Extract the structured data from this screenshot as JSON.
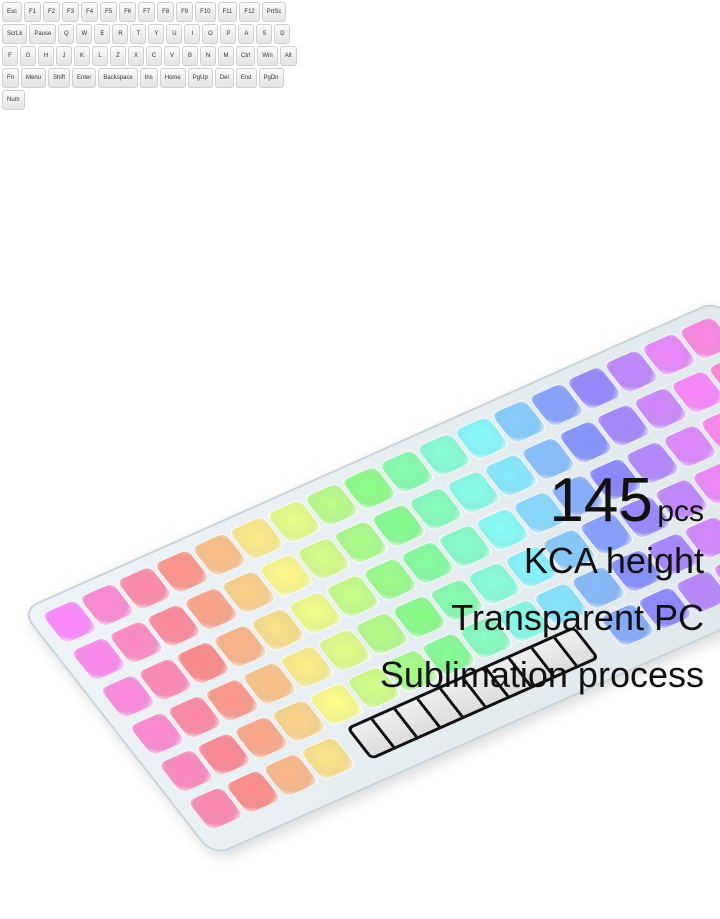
{
  "caption": {
    "count": "145",
    "unit": "pcs",
    "line1": "KCA height",
    "line2": "Transparent PC",
    "line3": "Sublimation process"
  },
  "keycaps": [
    "Esc",
    "F1",
    "F2",
    "F3",
    "F4",
    "F5",
    "F6",
    "F7",
    "F8",
    "F9",
    "F10",
    "F11",
    "F12",
    "PrtSc",
    "ScrLk",
    "Pause",
    "Q",
    "W",
    "E",
    "R",
    "T",
    "Y",
    "U",
    "I",
    "O",
    "P",
    "A",
    "S",
    "D",
    "F",
    "G",
    "H",
    "J",
    "K",
    "L",
    "Z",
    "X",
    "C",
    "V",
    "B",
    "N",
    "M",
    "Ctrl",
    "Win",
    "Alt",
    "Fn",
    "Menu",
    "Shift",
    "Enter",
    "Backspace",
    "Ins",
    "Home",
    "PgUp",
    "Del",
    "End",
    "PgDn",
    "Num"
  ],
  "colors": {
    "accent_red": "#ff4060",
    "accent_green": "#40e080",
    "accent_blue": "#6090ff",
    "accent_purple": "#c070ff"
  }
}
